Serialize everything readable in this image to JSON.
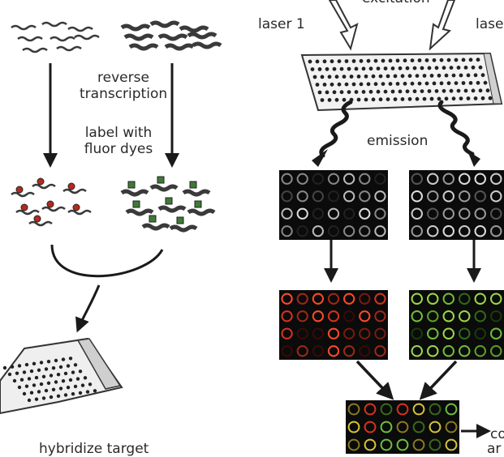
{
  "labels": {
    "excitation": "excitation",
    "laser_1": "laser 1",
    "laser_2": "lase",
    "reverse_transcription_line1": "reverse",
    "reverse_transcription_line2": "transcription",
    "label_line1": "label with",
    "label_line2": "fluor dyes",
    "emission": "emission",
    "hybridize": "hybridize target",
    "combine_line1": "co",
    "combine_line2": "ar"
  },
  "colors": {
    "ink": "#1a1a1a",
    "strand": "#3a3a3a",
    "red_dye": "#b42a1e",
    "green_dye": "#3f7a35",
    "red_spot": "#d8321e",
    "green_spot": "#6fbf3a",
    "yellow_spot": "#d7c43a",
    "scan_bg": "#0b0b0b",
    "slide": "#d9d9d9"
  },
  "icons": {
    "laser_arrow": "hollow-down-arrow",
    "emission_arrow": "wavy-arrow",
    "flow_arrow": "solid-down-arrow"
  }
}
